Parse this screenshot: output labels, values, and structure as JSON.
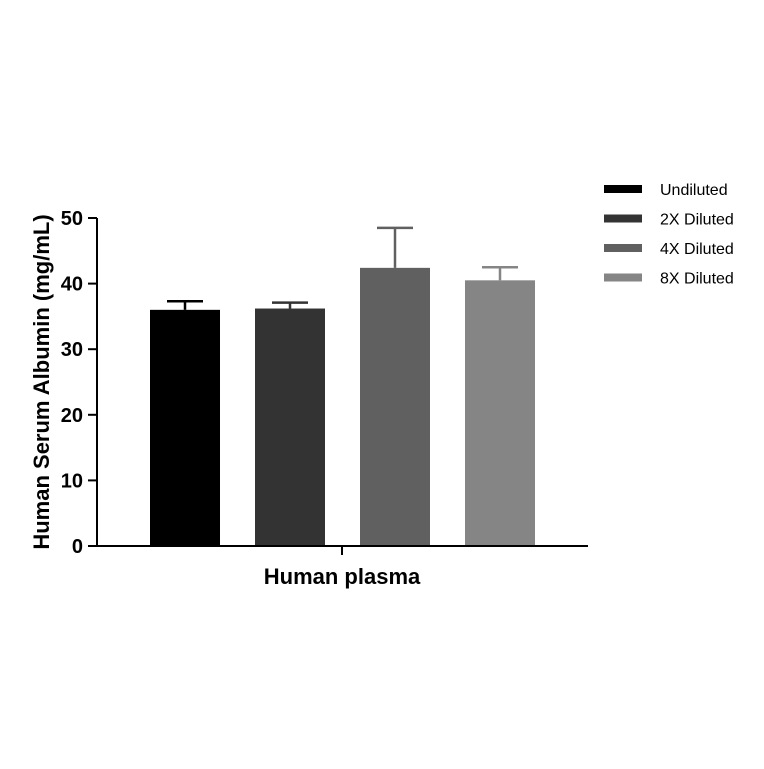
{
  "chart_data": {
    "type": "bar",
    "title": "",
    "xlabel": "Human plasma",
    "ylabel": "Human Serum Albumin (mg/mL)",
    "ylim": [
      0,
      50
    ],
    "yticks": [
      0,
      10,
      20,
      30,
      40,
      50
    ],
    "grid": false,
    "legend_position": "right",
    "categories": [
      "Human plasma"
    ],
    "series": [
      {
        "name": "Undiluted",
        "values": [
          36
        ],
        "error": [
          1.3
        ],
        "color": "#000000"
      },
      {
        "name": "2X Diluted",
        "values": [
          36.2
        ],
        "error": [
          0.9
        ],
        "color": "#333333"
      },
      {
        "name": "4X Diluted",
        "values": [
          42.4
        ],
        "error": [
          6.1
        ],
        "color": "#606060"
      },
      {
        "name": "8X Diluted",
        "values": [
          40.5
        ],
        "error": [
          2.0
        ],
        "color": "#858585"
      }
    ]
  }
}
